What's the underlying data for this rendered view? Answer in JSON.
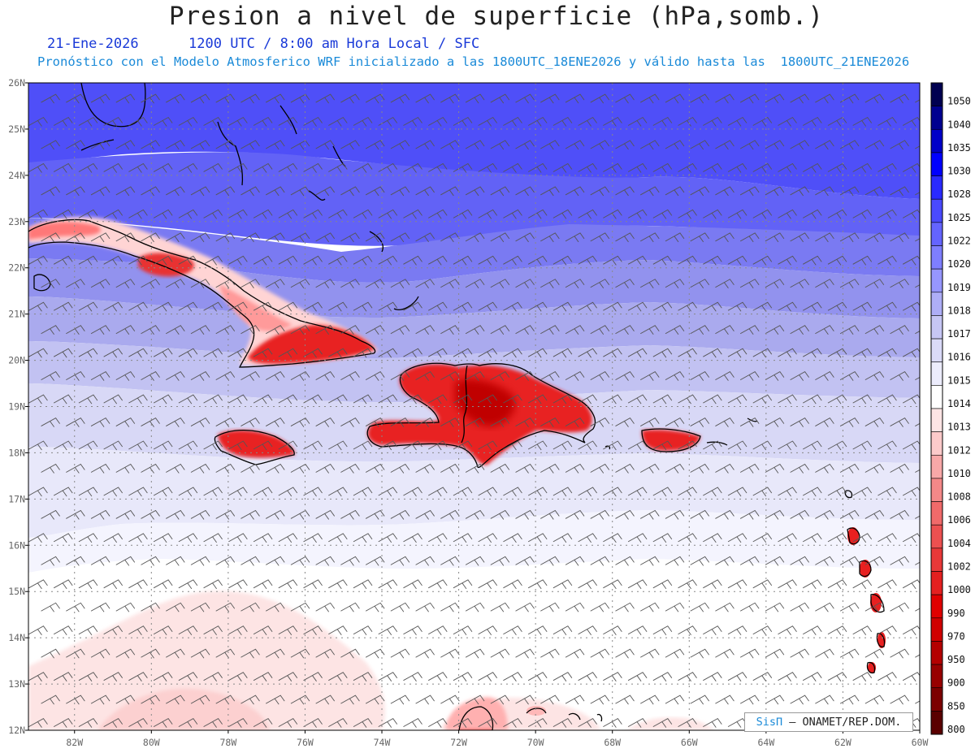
{
  "title": "Presion a nivel de superficie (hPa,somb.)",
  "date": "21-Ene-2026",
  "valid_time": "1200 UTC / 8:00 am Hora Local / SFC",
  "forecast_note": "Pronóstico con el Modelo Atmosferico WRF inicializado a las 1800UTC_18ENE2026 y válido hasta las  1800UTC_21ENE2026",
  "credit": {
    "brand": "SisΠ",
    "org": " – ONAMET/REP.DOM."
  },
  "map": {
    "lon_range": [
      -83.2,
      -60
    ],
    "lat_range": [
      12,
      26
    ],
    "lon_ticks": [
      "82W",
      "80W",
      "78W",
      "76W",
      "74W",
      "72W",
      "70W",
      "68W",
      "66W",
      "64W",
      "62W",
      "60W"
    ],
    "lat_ticks": [
      "12N",
      "13N",
      "14N",
      "15N",
      "16N",
      "17N",
      "18N",
      "19N",
      "20N",
      "21N",
      "22N",
      "23N",
      "24N",
      "25N",
      "26N"
    ],
    "colors": {
      "land_high": "#e00000",
      "land_mid": "#ff6060",
      "land_low": "#ffb8b8",
      "ocean_low": "#fde4e4"
    }
  },
  "colorbar": {
    "labels": [
      "1050",
      "1040",
      "1035",
      "1030",
      "1028",
      "1025",
      "1022",
      "1020",
      "1019",
      "1018",
      "1017",
      "1016",
      "1015",
      "1014",
      "1013",
      "1012",
      "1010",
      "1008",
      "1006",
      "1004",
      "1002",
      "1000",
      "990",
      "970",
      "950",
      "900",
      "850",
      "800"
    ],
    "colors": [
      "#000050",
      "#000090",
      "#0000c8",
      "#0000ff",
      "#2a2aff",
      "#4a4aff",
      "#6464ff",
      "#7e7eff",
      "#9696ff",
      "#aeaef6",
      "#c6c6f4",
      "#dadaf8",
      "#ececfc",
      "#ffffff",
      "#fde4e4",
      "#fccaca",
      "#f8a8a8",
      "#f48888",
      "#f06a6a",
      "#ec5050",
      "#e83838",
      "#e42020",
      "#e00000",
      "#d00000",
      "#b40000",
      "#980000",
      "#7c0000",
      "#5a0000"
    ]
  }
}
